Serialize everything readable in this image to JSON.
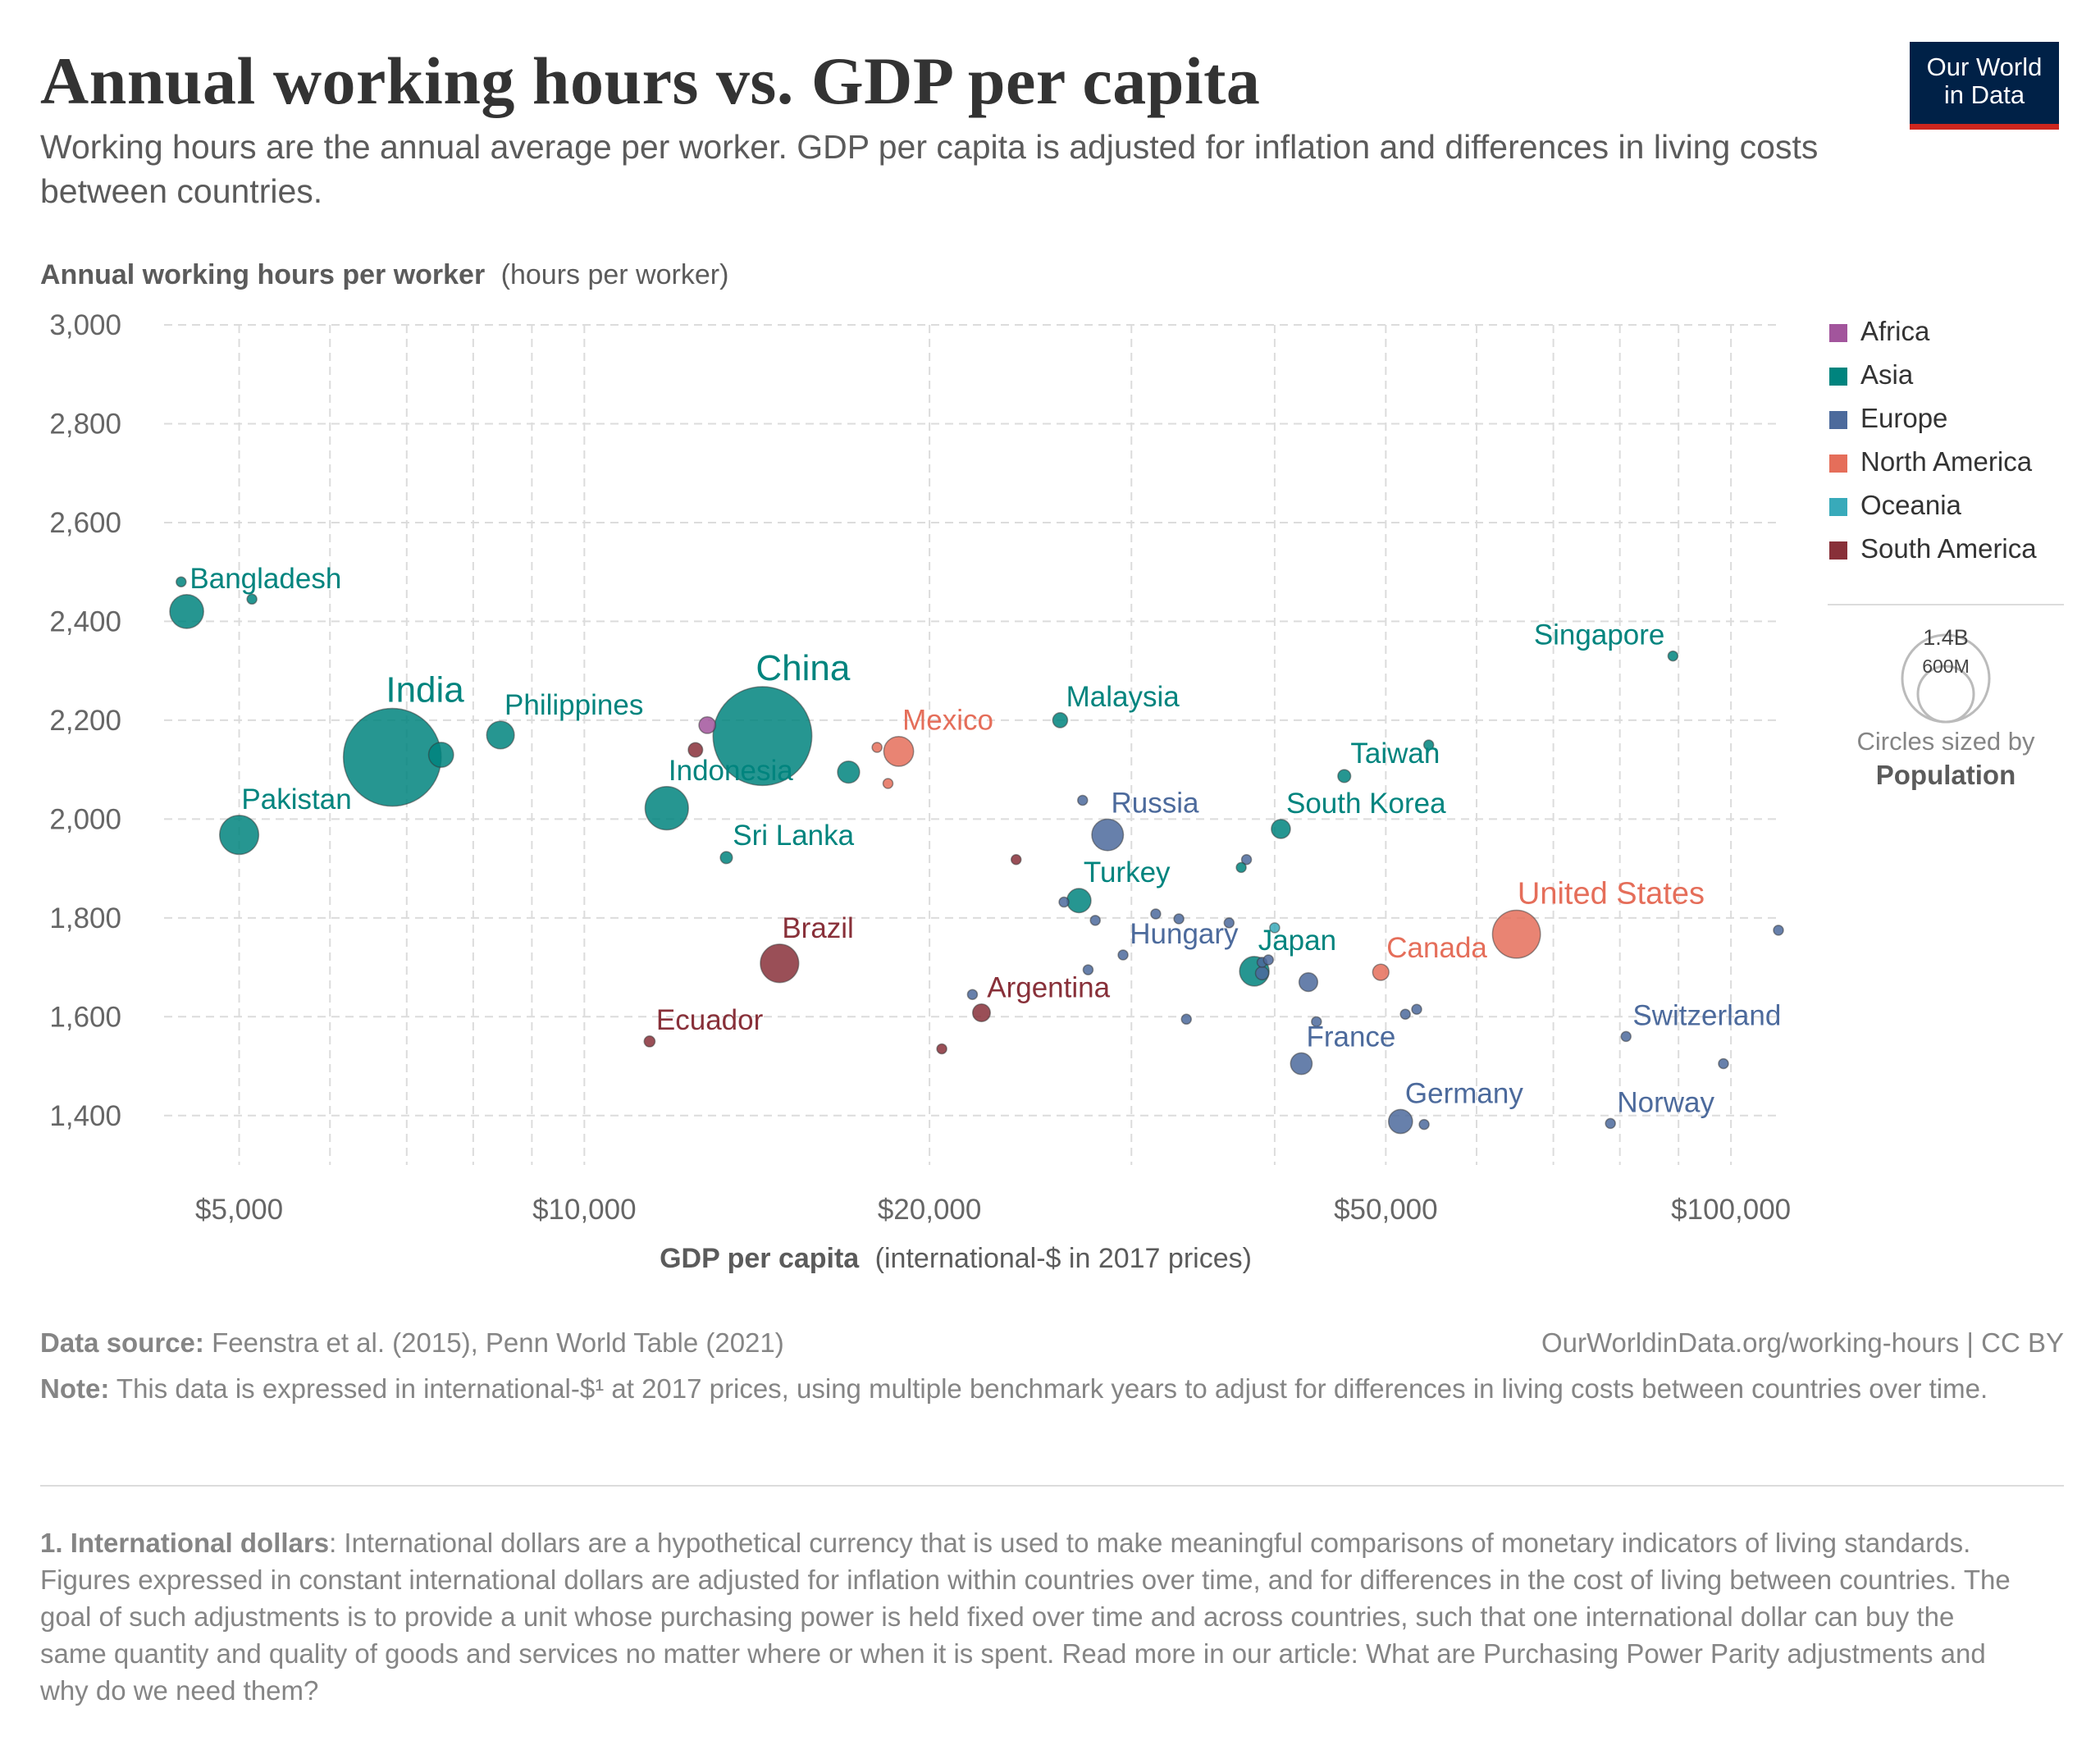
{
  "header": {
    "title": "Annual working hours vs. GDP per capita",
    "subtitle": "Working hours are the annual average per worker. GDP per capita is adjusted for inflation and differences in living costs between countries.",
    "logo_line1": "Our World",
    "logo_line2": "in Data"
  },
  "footer": {
    "source_label": "Data source:",
    "source_text": "Feenstra et al. (2015), Penn World Table (2021)",
    "url": "OurWorldinData.org/working-hours | CC BY",
    "note_label": "Note:",
    "note_text": "This data is expressed in international-$¹ at 2017 prices, using multiple benchmark years to adjust for differences in living costs between countries over time.",
    "endnote_label": "1. International dollars",
    "endnote_text": ": International dollars are a hypothetical currency that is used to make meaningful comparisons of monetary indicators of living standards. Figures expressed in constant international dollars are adjusted for inflation within countries over time, and for differences in the cost of living between countries. The goal of such adjustments is to provide a unit whose purchasing power is held fixed over time and across countries, such that one international dollar can buy the same quantity and quality of goods and services no matter where or when it is spent. Read more in our article: What are Purchasing Power Parity adjustments and why do we need them?"
  },
  "colors": {
    "Africa": "#a2559c",
    "Asia": "#00847e",
    "Europe": "#4c6a9c",
    "North America": "#e56e5a",
    "Oceania": "#38aaba",
    "South America": "#883039"
  },
  "chart_data": {
    "type": "scatter",
    "x_scale": "log",
    "ylabel_bold": "Annual working hours per worker",
    "ylabel_rest": "(hours per worker)",
    "xlabel_bold": "GDP per capita",
    "xlabel_rest": "(international-$ in 2017 prices)",
    "xlim": [
      4300,
      110000
    ],
    "ylim": [
      1300,
      3000
    ],
    "y_ticks": [
      1400,
      1600,
      1800,
      2000,
      2200,
      2400,
      2600,
      2800,
      3000
    ],
    "y_tick_labels": [
      "1,400",
      "1,600",
      "1,800",
      "2,000",
      "2,200",
      "2,400",
      "2,600",
      "2,800",
      "3,000"
    ],
    "x_ticks_labeled": [
      5000,
      10000,
      20000,
      50000,
      100000
    ],
    "x_tick_labels": [
      "$5,000",
      "$10,000",
      "$20,000",
      "$50,000",
      "$100,000"
    ],
    "x_ticks_minor": [
      6000,
      7000,
      8000,
      9000,
      30000,
      40000,
      60000,
      70000,
      80000,
      90000
    ],
    "legend": [
      "Africa",
      "Asia",
      "Europe",
      "North America",
      "Oceania",
      "South America"
    ],
    "size_legend": {
      "large": "1.4B",
      "small": "600M",
      "caption": "Circles sized by",
      "caption_bold": "Population"
    },
    "points": [
      {
        "name": "Bangladesh",
        "gdp": 4500,
        "hours": 2420,
        "pop": 165000000,
        "region": "Asia",
        "label": true
      },
      {
        "name": "",
        "gdp": 4450,
        "hours": 2480,
        "pop": 6000000,
        "region": "Asia",
        "label": false
      },
      {
        "name": "",
        "gdp": 5130,
        "hours": 2445,
        "pop": 6000000,
        "region": "Asia",
        "label": false
      },
      {
        "name": "Pakistan",
        "gdp": 5000,
        "hours": 1968,
        "pop": 220000000,
        "region": "Asia",
        "label": true
      },
      {
        "name": "India",
        "gdp": 6800,
        "hours": 2125,
        "pop": 1380000000,
        "region": "Asia",
        "label": true
      },
      {
        "name": "",
        "gdp": 7500,
        "hours": 2130,
        "pop": 90000000,
        "region": "Asia",
        "label": false
      },
      {
        "name": "Philippines",
        "gdp": 8450,
        "hours": 2170,
        "pop": 110000000,
        "region": "Asia",
        "label": true
      },
      {
        "name": "",
        "gdp": 12800,
        "hours": 2190,
        "pop": 40000000,
        "region": "Africa",
        "label": false
      },
      {
        "name": "",
        "gdp": 12500,
        "hours": 2140,
        "pop": 30000000,
        "region": "South America",
        "label": false
      },
      {
        "name": "Indonesia",
        "gdp": 11800,
        "hours": 2022,
        "pop": 270000000,
        "region": "Asia",
        "label": true
      },
      {
        "name": "China",
        "gdp": 14300,
        "hours": 2168,
        "pop": 1410000000,
        "region": "Asia",
        "label": true
      },
      {
        "name": "Sri Lanka",
        "gdp": 13300,
        "hours": 1922,
        "pop": 21000000,
        "region": "Asia",
        "label": true
      },
      {
        "name": "Brazil",
        "gdp": 14800,
        "hours": 1708,
        "pop": 212000000,
        "region": "South America",
        "label": true
      },
      {
        "name": "Ecuador",
        "gdp": 11400,
        "hours": 1550,
        "pop": 17000000,
        "region": "South America",
        "label": true
      },
      {
        "name": "",
        "gdp": 17000,
        "hours": 2095,
        "pop": 70000000,
        "region": "Asia",
        "label": false
      },
      {
        "name": "",
        "gdp": 18000,
        "hours": 2145,
        "pop": 10000000,
        "region": "North America",
        "label": false
      },
      {
        "name": "Mexico",
        "gdp": 18800,
        "hours": 2137,
        "pop": 128000000,
        "region": "North America",
        "label": true
      },
      {
        "name": "",
        "gdp": 18400,
        "hours": 2072,
        "pop": 10000000,
        "region": "North America",
        "label": false
      },
      {
        "name": "",
        "gdp": 23800,
        "hours": 1918,
        "pop": 10000000,
        "region": "South America",
        "label": false
      },
      {
        "name": "",
        "gdp": 20500,
        "hours": 1535,
        "pop": 10000000,
        "region": "South America",
        "label": false
      },
      {
        "name": "Argentina",
        "gdp": 22200,
        "hours": 1608,
        "pop": 45000000,
        "region": "South America",
        "label": true
      },
      {
        "name": "",
        "gdp": 21800,
        "hours": 1645,
        "pop": 10000000,
        "region": "Europe",
        "label": false
      },
      {
        "name": "Malaysia",
        "gdp": 26000,
        "hours": 2200,
        "pop": 32000000,
        "region": "Asia",
        "label": true
      },
      {
        "name": "",
        "gdp": 27200,
        "hours": 2038,
        "pop": 10000000,
        "region": "Europe",
        "label": false
      },
      {
        "name": "Russia",
        "gdp": 28600,
        "hours": 1968,
        "pop": 144000000,
        "region": "Europe",
        "label": true
      },
      {
        "name": "Turkey",
        "gdp": 27000,
        "hours": 1835,
        "pop": 84000000,
        "region": "Asia",
        "label": true
      },
      {
        "name": "",
        "gdp": 26200,
        "hours": 1832,
        "pop": 10000000,
        "region": "Europe",
        "label": false
      },
      {
        "name": "",
        "gdp": 27900,
        "hours": 1795,
        "pop": 10000000,
        "region": "Europe",
        "label": false
      },
      {
        "name": "",
        "gdp": 27500,
        "hours": 1695,
        "pop": 10000000,
        "region": "Europe",
        "label": false
      },
      {
        "name": "Hungary",
        "gdp": 29500,
        "hours": 1725,
        "pop": 10000000,
        "region": "Europe",
        "label": true
      },
      {
        "name": "",
        "gdp": 31500,
        "hours": 1808,
        "pop": 10000000,
        "region": "Europe",
        "label": false
      },
      {
        "name": "",
        "gdp": 33000,
        "hours": 1798,
        "pop": 10000000,
        "region": "Europe",
        "label": false
      },
      {
        "name": "",
        "gdp": 33500,
        "hours": 1595,
        "pop": 10000000,
        "region": "Europe",
        "label": false
      },
      {
        "name": "",
        "gdp": 36500,
        "hours": 1790,
        "pop": 10000000,
        "region": "Europe",
        "label": false
      },
      {
        "name": "",
        "gdp": 37800,
        "hours": 1918,
        "pop": 10000000,
        "region": "Europe",
        "label": false
      },
      {
        "name": "",
        "gdp": 37400,
        "hours": 1902,
        "pop": 10000000,
        "region": "Asia",
        "label": false
      },
      {
        "name": "South Korea",
        "gdp": 40500,
        "hours": 1980,
        "pop": 52000000,
        "region": "Asia",
        "label": true
      },
      {
        "name": "Taiwan",
        "gdp": 46000,
        "hours": 2087,
        "pop": 24000000,
        "region": "Asia",
        "label": true
      },
      {
        "name": "",
        "gdp": 54500,
        "hours": 2150,
        "pop": 6000000,
        "region": "Asia",
        "label": false
      },
      {
        "name": "Singapore",
        "gdp": 89000,
        "hours": 2330,
        "pop": 6000000,
        "region": "Asia",
        "label": true
      },
      {
        "name": "",
        "gdp": 40000,
        "hours": 1780,
        "pop": 6000000,
        "region": "Oceania",
        "label": false
      },
      {
        "name": "",
        "gdp": 39000,
        "hours": 1710,
        "pop": 10000000,
        "region": "Europe",
        "label": false
      },
      {
        "name": "",
        "gdp": 39500,
        "hours": 1715,
        "pop": 10000000,
        "region": "Europe",
        "label": false
      },
      {
        "name": "Japan",
        "gdp": 38400,
        "hours": 1692,
        "pop": 126000000,
        "region": "Asia",
        "label": true
      },
      {
        "name": "",
        "gdp": 39000,
        "hours": 1688,
        "pop": 25000000,
        "region": "Europe",
        "label": false
      },
      {
        "name": "",
        "gdp": 42800,
        "hours": 1670,
        "pop": 50000000,
        "region": "Europe",
        "label": false
      },
      {
        "name": "",
        "gdp": 43500,
        "hours": 1590,
        "pop": 10000000,
        "region": "Europe",
        "label": false
      },
      {
        "name": "France",
        "gdp": 42200,
        "hours": 1505,
        "pop": 67000000,
        "region": "Europe",
        "label": true
      },
      {
        "name": "Canada",
        "gdp": 49500,
        "hours": 1690,
        "pop": 38000000,
        "region": "North America",
        "label": true
      },
      {
        "name": "United States",
        "gdp": 65000,
        "hours": 1767,
        "pop": 331000000,
        "region": "North America",
        "label": true
      },
      {
        "name": "",
        "gdp": 52000,
        "hours": 1605,
        "pop": 10000000,
        "region": "Europe",
        "label": false
      },
      {
        "name": "",
        "gdp": 53200,
        "hours": 1615,
        "pop": 10000000,
        "region": "Europe",
        "label": false
      },
      {
        "name": "Germany",
        "gdp": 51500,
        "hours": 1388,
        "pop": 83000000,
        "region": "Europe",
        "label": true
      },
      {
        "name": "",
        "gdp": 54000,
        "hours": 1382,
        "pop": 10000000,
        "region": "Europe",
        "label": false
      },
      {
        "name": "Switzerland",
        "gdp": 81000,
        "hours": 1560,
        "pop": 9000000,
        "region": "Europe",
        "label": true
      },
      {
        "name": "Norway",
        "gdp": 78500,
        "hours": 1384,
        "pop": 6000000,
        "region": "Europe",
        "label": true
      },
      {
        "name": "",
        "gdp": 98500,
        "hours": 1505,
        "pop": 6000000,
        "region": "Europe",
        "label": false
      },
      {
        "name": "",
        "gdp": 110000,
        "hours": 1775,
        "pop": 6000000,
        "region": "Europe",
        "label": false
      }
    ]
  }
}
